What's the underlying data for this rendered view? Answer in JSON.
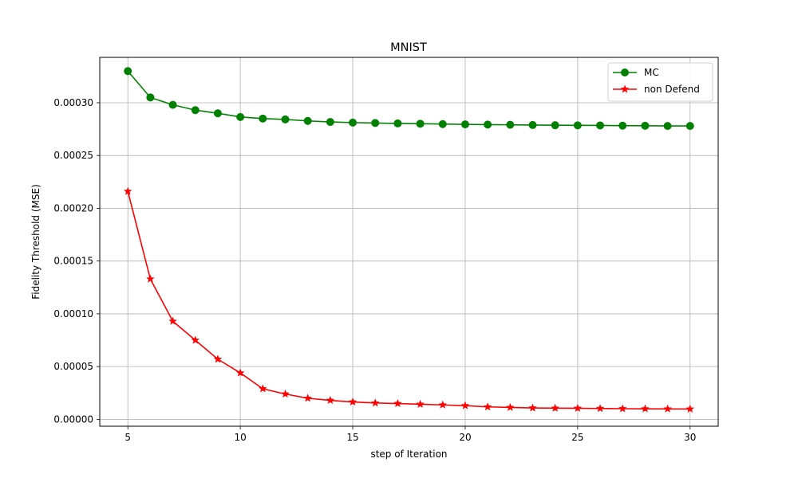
{
  "chart_data": {
    "type": "line",
    "title": "MNIST",
    "xlabel": "step of Iteration",
    "ylabel": "Fidelity Threshold (MSE)",
    "xlim": [
      3.75,
      31.25
    ],
    "ylim": [
      -6.5e-06,
      0.000343
    ],
    "x_ticks": [
      5,
      10,
      15,
      20,
      25,
      30
    ],
    "x_tick_labels": [
      "5",
      "10",
      "15",
      "20",
      "25",
      "30"
    ],
    "y_ticks": [
      0,
      5e-05,
      0.0001,
      0.00015,
      0.0002,
      0.00025,
      0.0003
    ],
    "y_tick_labels": [
      "0.00000",
      "0.00005",
      "0.00010",
      "0.00015",
      "0.00020",
      "0.00025",
      "0.00030"
    ],
    "grid": true,
    "legend_position": "top-right",
    "x": [
      5,
      6,
      7,
      8,
      9,
      10,
      11,
      12,
      13,
      14,
      15,
      16,
      17,
      18,
      19,
      20,
      21,
      22,
      23,
      24,
      25,
      26,
      27,
      28,
      29,
      30
    ],
    "series": [
      {
        "name": "MC",
        "color": "#008000",
        "marker": "circle",
        "values": [
          0.00033,
          0.000305,
          0.000298,
          0.000293,
          0.00029,
          0.0002865,
          0.000285,
          0.0002842,
          0.0002828,
          0.0002818,
          0.0002812,
          0.0002808,
          0.0002804,
          0.0002801,
          0.0002798,
          0.0002795,
          0.0002793,
          0.0002791,
          0.0002789,
          0.0002787,
          0.0002786,
          0.0002785,
          0.0002783,
          0.0002782,
          0.000278,
          0.000278
        ]
      },
      {
        "name": "non Defend",
        "color": "#ff0000",
        "marker": "star",
        "values": [
          0.000216,
          0.000133,
          9.3e-05,
          7.5e-05,
          5.7e-05,
          4.4e-05,
          2.9e-05,
          2.4e-05,
          2e-05,
          1.8e-05,
          1.65e-05,
          1.55e-05,
          1.5e-05,
          1.43e-05,
          1.37e-05,
          1.3e-05,
          1.18e-05,
          1.13e-05,
          1.08e-05,
          1.06e-05,
          1.05e-05,
          1.03e-05,
          1.01e-05,
          1e-05,
          9.9e-06,
          9.8e-06
        ]
      }
    ]
  }
}
